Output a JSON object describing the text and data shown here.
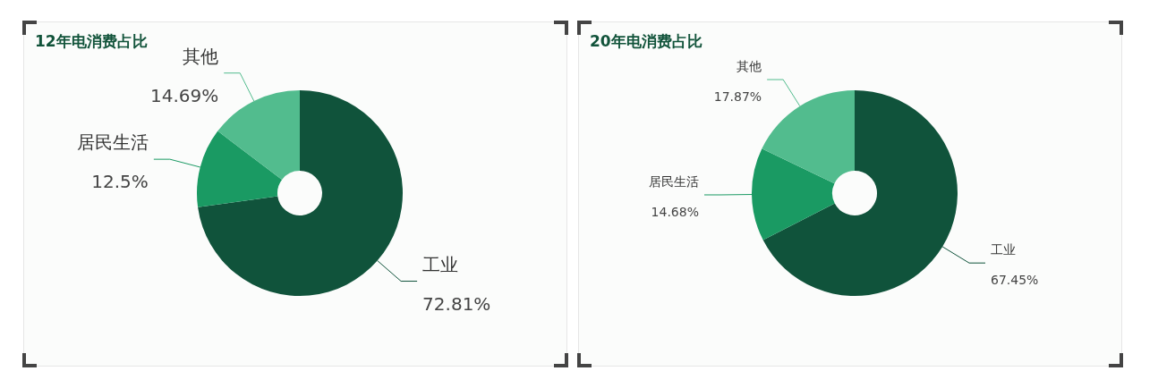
{
  "chart_data": [
    {
      "type": "donut",
      "title": "12年电消费占比",
      "categories": [
        "工业",
        "居民生活",
        "其他"
      ],
      "values": [
        72.81,
        12.5,
        14.69
      ],
      "value_labels": [
        "72.81%",
        "12.5%",
        "14.69%"
      ],
      "colors": [
        "#10533b",
        "#1a9a63",
        "#52bc8e"
      ]
    },
    {
      "type": "donut",
      "title": "20年电消费占比",
      "categories": [
        "工业",
        "居民生活",
        "其他"
      ],
      "values": [
        67.45,
        14.68,
        17.87
      ],
      "value_labels": [
        "67.45%",
        "14.68%",
        "17.87%"
      ],
      "colors": [
        "#10533b",
        "#1a9a63",
        "#52bc8e"
      ]
    }
  ]
}
